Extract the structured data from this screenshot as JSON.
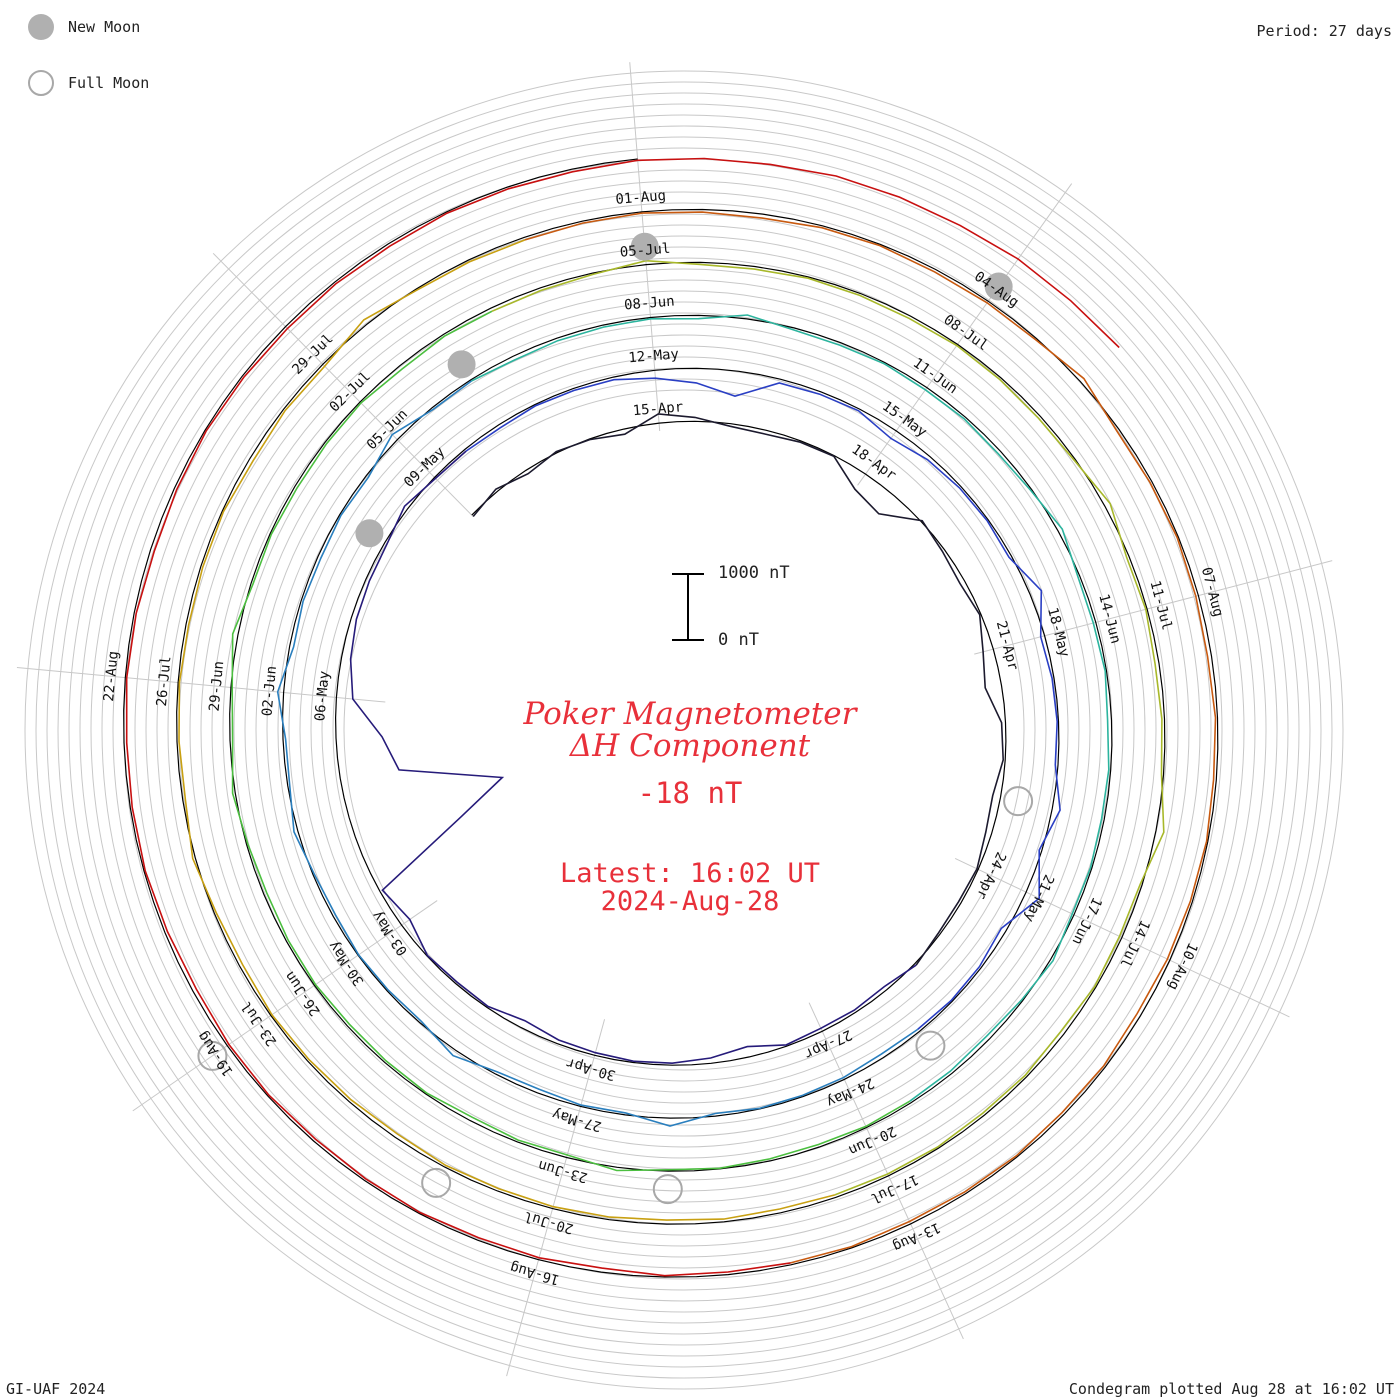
{
  "legend": {
    "new_moon_label": "New Moon",
    "full_moon_label": "Full Moon",
    "new_moon_color": "#b0b0b0",
    "full_moon_color": "#a8a8a8"
  },
  "period": "Period: 27 days",
  "credit": "GI-UAF 2024",
  "footer": "Condegram plotted Aug 28 at 16:02 UT",
  "center": {
    "title_line1": "Poker Magnetometer",
    "title_line2": "ΔH Component",
    "value": "-18 nT",
    "latest_line1": "Latest: 16:02 UT",
    "latest_line2": "2024-Aug-28",
    "text_color": "#e8303a"
  },
  "scale_bar": {
    "top_label": "1000 nT",
    "bottom_label": "0 nT"
  },
  "chart_data": {
    "type": "line",
    "description_units": "nT",
    "start_date": "2024-Apr-12",
    "end_date": "2024-Aug-28",
    "period_days": 27,
    "ticks_every_days": 3,
    "tick_labels": [
      "15-Apr",
      "18-Apr",
      "21-Apr",
      "24-Apr",
      "27-Apr",
      "30-Apr",
      "03-May",
      "06-May",
      "09-May",
      "12-May",
      "15-May",
      "18-May",
      "21-May",
      "24-May",
      "27-May",
      "30-May",
      "02-Jun",
      "05-Jun",
      "08-Jun",
      "11-Jun",
      "14-Jun",
      "17-Jun",
      "20-Jun",
      "23-Jun",
      "26-Jun",
      "29-Jun",
      "02-Jul",
      "05-Jul",
      "08-Jul",
      "11-Jul",
      "14-Jul",
      "17-Jul",
      "20-Jul",
      "23-Jul",
      "26-Jul",
      "29-Jul",
      "01-Aug",
      "04-Aug",
      "07-Aug",
      "10-Aug",
      "13-Aug",
      "16-Aug",
      "19-Aug",
      "22-Aug"
    ],
    "new_moons": [
      "2024-May-08",
      "2024-Jun-06",
      "2024-Jul-05",
      "2024-Aug-04"
    ],
    "full_moons": [
      "2024-Apr-23",
      "2024-May-23",
      "2024-Jun-22",
      "2024-Jul-21",
      "2024-Aug-19"
    ],
    "dH_series": {
      "name": "ΔH",
      "interval_hours": 12,
      "values": [
        -30,
        40,
        -60,
        20,
        -10,
        -80,
        140,
        60,
        -40,
        -60,
        -20,
        -10,
        -280,
        -360,
        20,
        -40,
        -80,
        -20,
        -160,
        -250,
        -60,
        -30,
        -120,
        -90,
        -20,
        -40,
        -30,
        30,
        -60,
        -40,
        -50,
        -20,
        -160,
        -80,
        -30,
        -20,
        -40,
        -60,
        -120,
        -20,
        -30,
        -10,
        -150,
        -40,
        -1600,
        -2400,
        -900,
        -700,
        -250,
        -140,
        -80,
        -60,
        -40,
        60,
        -20,
        -30,
        -50,
        -20,
        -30,
        -40,
        -120,
        -220,
        -380,
        -60,
        -40,
        -30,
        -140,
        -60,
        -30,
        -20,
        -40,
        180,
        -60,
        -30,
        -20,
        -40,
        120,
        -40,
        220,
        -80,
        -30,
        -20,
        -40,
        -60,
        -30,
        -20,
        -10,
        -40,
        120,
        -30,
        -20,
        -60,
        -40,
        90,
        -30,
        -20,
        -10,
        -40,
        -20,
        60,
        -30,
        -40,
        90,
        -60,
        -30,
        -50,
        -20,
        -40,
        110,
        -30,
        -20,
        -60,
        -40,
        -30,
        -20,
        -50,
        60,
        -30,
        -40,
        -20,
        -40,
        -30,
        -50,
        -20,
        70,
        -30,
        -40,
        -20,
        -60,
        -30,
        -40,
        -20,
        -30,
        40,
        -20,
        -60,
        -40,
        -30,
        -20,
        -40,
        -30,
        -10,
        -20,
        50,
        -40,
        -30,
        -60,
        -20,
        -30,
        -40,
        -20,
        -30,
        -50,
        -20,
        40,
        -40,
        -20,
        80,
        -30,
        -20,
        -40,
        -30,
        -20,
        -60,
        -30,
        -50,
        -40,
        -20,
        60,
        -30,
        -40,
        -20,
        -30,
        -40,
        -20,
        -30,
        -40,
        -20,
        90,
        -40,
        -20,
        -60,
        -40,
        -30,
        120,
        -30,
        -40,
        -20,
        -60,
        -30,
        -40,
        -20,
        -30,
        -40,
        -60,
        -40,
        -60,
        -40,
        -30,
        -40,
        -30,
        -60,
        -40,
        -30,
        -20,
        -50,
        -30,
        40,
        -40,
        -30,
        -20,
        -40,
        -30,
        -20,
        -60,
        -30,
        -40,
        80,
        -20,
        -30,
        -40,
        -30,
        -20,
        -40,
        -60,
        -30,
        -20,
        -40,
        -30,
        -20,
        70,
        -40,
        -30,
        -20,
        -40,
        -60,
        -30,
        -40,
        -20,
        -30,
        -40,
        -60,
        -30,
        -40,
        -20,
        -30,
        -40,
        -20,
        -30,
        -40,
        -20,
        -60,
        -30,
        -40,
        -20,
        -30,
        -40,
        -20,
        -30,
        -60,
        -40,
        -20,
        -30,
        -40,
        -20,
        -30,
        -60,
        -40,
        -20,
        -30,
        -40,
        -30,
        -40,
        -20,
        -30,
        -40,
        -20,
        -30,
        -40,
        -20,
        -30,
        -40,
        -20,
        -30,
        -20
      ]
    },
    "series_colors": [
      "#1c1a2e",
      "#261b7a",
      "#2a3fc4",
      "#2a7fbe",
      "#2cb49e",
      "#4cbf40",
      "#a8b82a",
      "#c8a012",
      "#c85a10",
      "#c81010"
    ]
  }
}
